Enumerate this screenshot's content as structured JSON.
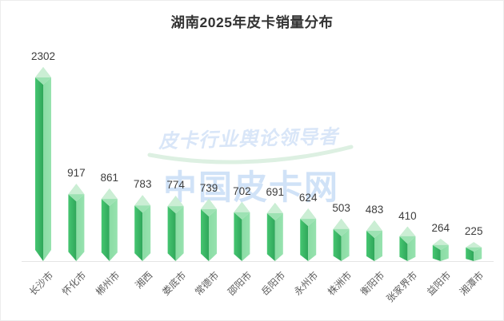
{
  "title": "湖南2025年皮卡销量分布",
  "watermarks": {
    "slogan": "皮卡行业舆论领导者",
    "brand": "中国皮卡网",
    "slogan_color": "#d9e6f8",
    "brand_color": "#d0e2f7",
    "swoosh_color": "#ddf0e2"
  },
  "chart_data": {
    "type": "bar",
    "title": "湖南2025年皮卡销量分布",
    "categories": [
      "长沙市",
      "怀化市",
      "郴州市",
      "湘西",
      "娄底市",
      "常德市",
      "邵阳市",
      "岳阳市",
      "永州市",
      "株洲市",
      "衡阳市",
      "张家界市",
      "益阳市",
      "湘潭市"
    ],
    "values": [
      2302,
      917,
      861,
      783,
      774,
      739,
      702,
      691,
      624,
      503,
      483,
      410,
      264,
      225
    ],
    "xlabel": "",
    "ylabel": "",
    "ylim": [
      0,
      2302
    ],
    "grid": "off",
    "legend": "none",
    "value_labels": "on",
    "x_label_rotation": -45,
    "colors": {
      "face_left_light": "#46c671",
      "face_left_dark": "#2fa65a",
      "face_right": "#8adca4",
      "cap_top": "#cbeed4",
      "cap_bottom": "#9de2b3",
      "axis_line": "#e5e5e5",
      "value_text": "#3d3d3d",
      "category_text": "#5c5c5c",
      "title_text": "#333333"
    }
  }
}
